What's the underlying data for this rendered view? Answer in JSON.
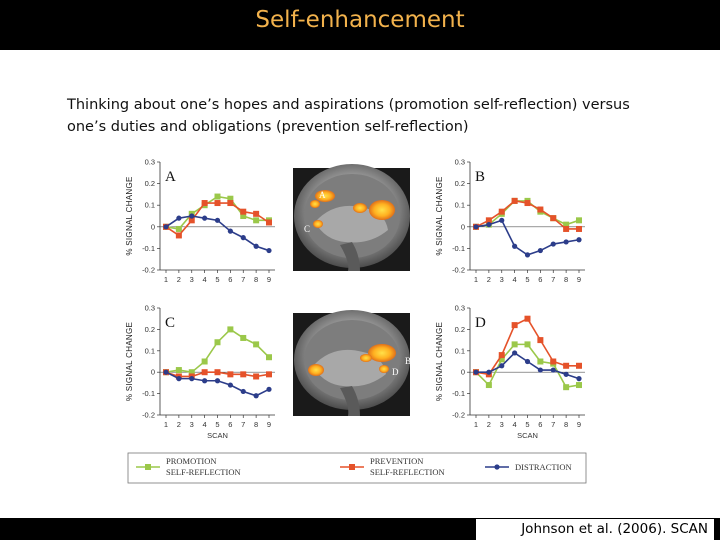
{
  "slide": {
    "title": "Self-enhancement",
    "intro_line1": "Thinking about one’s hopes and aspirations  (promotion self-reflection) versus",
    "intro_line2": "one’s duties and obligations (prevention self-reflection)",
    "citation": "Johnson et al. (2006). SCAN"
  },
  "colors": {
    "promotion": "#9bc84a",
    "prevention": "#e5522a",
    "distraction": "#2c3d8a"
  },
  "brain_images": [
    {
      "labels": [
        "A",
        "C"
      ]
    },
    {
      "labels": [
        "B",
        "D"
      ]
    }
  ],
  "legend": [
    {
      "series": "promotion",
      "line1": "PROMOTION",
      "line2": "SELF-REFLECTION"
    },
    {
      "series": "prevention",
      "line1": "PREVENTION",
      "line2": "SELF-REFLECTION"
    },
    {
      "series": "distraction",
      "line1": "DISTRACTION",
      "line2": ""
    }
  ],
  "chart_data": [
    {
      "type": "line",
      "panel": "A",
      "ylabel": "% SIGNAL CHANGE",
      "xlabel": "",
      "x": [
        1,
        2,
        3,
        4,
        5,
        6,
        7,
        8,
        9
      ],
      "ylim": [
        -0.2,
        0.3
      ],
      "yticks": [
        "0.3",
        "0.2",
        "0.1",
        "0",
        "-0.1",
        "-0.2"
      ],
      "series": [
        {
          "name": "PROMOTION SELF-REFLECTION",
          "key": "promotion",
          "values": [
            0,
            -0.01,
            0.06,
            0.1,
            0.14,
            0.13,
            0.05,
            0.03,
            0.03
          ]
        },
        {
          "name": "PREVENTION SELF-REFLECTION",
          "key": "prevention",
          "values": [
            0,
            -0.04,
            0.03,
            0.11,
            0.11,
            0.11,
            0.07,
            0.06,
            0.02
          ]
        },
        {
          "name": "DISTRACTION",
          "key": "distraction",
          "values": [
            0,
            0.04,
            0.05,
            0.04,
            0.03,
            -0.02,
            -0.05,
            -0.09,
            -0.11
          ]
        }
      ]
    },
    {
      "type": "line",
      "panel": "B",
      "ylabel": "% SIGNAL CHANGE",
      "xlabel": "",
      "x": [
        1,
        2,
        3,
        4,
        5,
        6,
        7,
        8,
        9
      ],
      "ylim": [
        -0.2,
        0.3
      ],
      "yticks": [
        "0.3",
        "0.2",
        "0.1",
        "0",
        "-0.1",
        "-0.2"
      ],
      "series": [
        {
          "name": "PROMOTION SELF-REFLECTION",
          "key": "promotion",
          "values": [
            0,
            0.01,
            0.06,
            0.12,
            0.12,
            0.07,
            0.04,
            0.01,
            0.03
          ]
        },
        {
          "name": "PREVENTION SELF-REFLECTION",
          "key": "prevention",
          "values": [
            0,
            0.03,
            0.07,
            0.12,
            0.11,
            0.08,
            0.04,
            -0.01,
            -0.01
          ]
        },
        {
          "name": "DISTRACTION",
          "key": "distraction",
          "values": [
            0,
            0.01,
            0.03,
            -0.09,
            -0.13,
            -0.11,
            -0.08,
            -0.07,
            -0.06
          ]
        }
      ]
    },
    {
      "type": "line",
      "panel": "C",
      "ylabel": "% SIGNAL CHANGE",
      "xlabel": "SCAN",
      "x": [
        1,
        2,
        3,
        4,
        5,
        6,
        7,
        8,
        9
      ],
      "ylim": [
        -0.2,
        0.3
      ],
      "yticks": [
        "0.3",
        "0.2",
        "0.1",
        "0",
        "-0.1",
        "-0.2"
      ],
      "series": [
        {
          "name": "PROMOTION SELF-REFLECTION",
          "key": "promotion",
          "values": [
            0,
            0.01,
            0,
            0.05,
            0.14,
            0.2,
            0.16,
            0.13,
            0.07
          ]
        },
        {
          "name": "PREVENTION SELF-REFLECTION",
          "key": "prevention",
          "values": [
            0,
            -0.02,
            -0.02,
            0,
            0,
            -0.01,
            -0.01,
            -0.02,
            -0.01
          ]
        },
        {
          "name": "DISTRACTION",
          "key": "distraction",
          "values": [
            0,
            -0.03,
            -0.03,
            -0.04,
            -0.04,
            -0.06,
            -0.09,
            -0.11,
            -0.08
          ]
        }
      ]
    },
    {
      "type": "line",
      "panel": "D",
      "ylabel": "% SIGNAL CHANGE",
      "xlabel": "SCAN",
      "x": [
        1,
        2,
        3,
        4,
        5,
        6,
        7,
        8,
        9
      ],
      "ylim": [
        -0.2,
        0.3
      ],
      "yticks": [
        "0.3",
        "0.2",
        "0.1",
        "0",
        "-0.1",
        "-0.2"
      ],
      "series": [
        {
          "name": "PROMOTION SELF-REFLECTION",
          "key": "promotion",
          "values": [
            0,
            -0.06,
            0.06,
            0.13,
            0.13,
            0.05,
            0.04,
            -0.07,
            -0.06
          ]
        },
        {
          "name": "PREVENTION SELF-REFLECTION",
          "key": "prevention",
          "values": [
            0,
            -0.01,
            0.08,
            0.22,
            0.25,
            0.15,
            0.05,
            0.03,
            0.03
          ]
        },
        {
          "name": "DISTRACTION",
          "key": "distraction",
          "values": [
            0,
            0,
            0.03,
            0.09,
            0.05,
            0.01,
            0.01,
            -0.01,
            -0.03
          ]
        }
      ]
    }
  ]
}
